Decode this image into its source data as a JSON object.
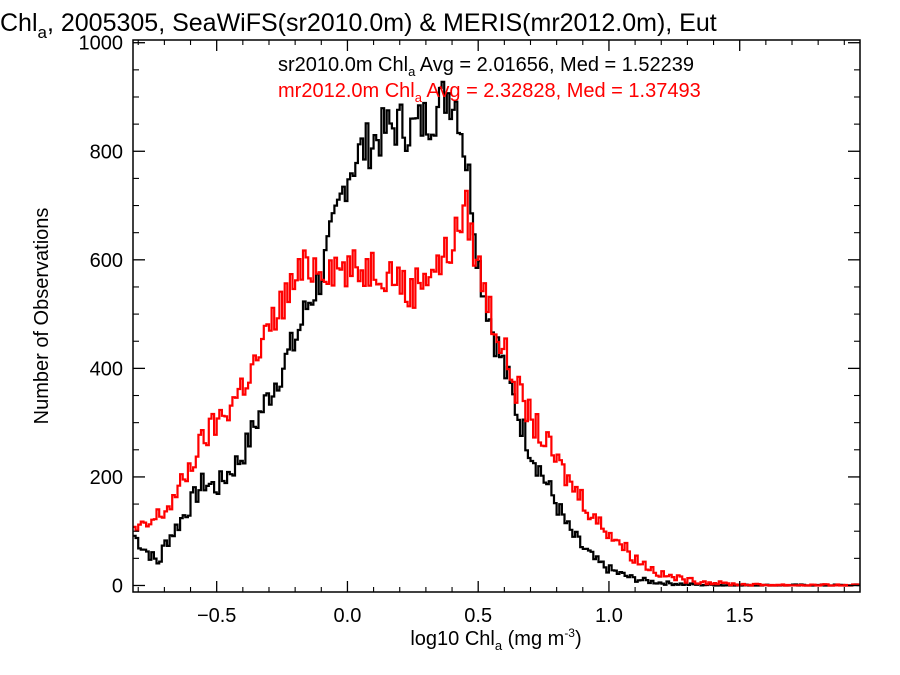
{
  "chart_data": {
    "type": "line",
    "step": true,
    "title": {
      "main": "Chl",
      "sub": "a",
      "rest": ", 2005305, SeaWiFS(sr2010.0m) & MERIS(mr2012.0m), Eut"
    },
    "xlabel": {
      "pre": "log10 Chl",
      "sub": "a",
      "mid": " (mg m",
      "sup": "-3",
      "post": ")"
    },
    "ylabel": "Number of Observations",
    "xlim": [
      -0.82,
      1.96
    ],
    "ylim": [
      -12,
      1005
    ],
    "x_ticks": [
      -0.5,
      0.0,
      0.5,
      1.0,
      1.5
    ],
    "x_tick_labels": [
      "−0.5",
      "0.0",
      "0.5",
      "1.0",
      "1.5"
    ],
    "y_ticks": [
      0,
      200,
      400,
      600,
      800,
      1000
    ],
    "y_tick_labels": [
      "0",
      "200",
      "400",
      "600",
      "800",
      "1000"
    ],
    "legend_position": "top-right",
    "series": [
      {
        "name": "sr2010.0m",
        "color": "#000000",
        "legend": {
          "pre": "sr2010.0m Chl",
          "sub": "a",
          "post": " Avg = 2.01656, Med = 1.52239"
        },
        "points": [
          [
            -0.82,
            95
          ],
          [
            -0.78,
            70
          ],
          [
            -0.75,
            55
          ],
          [
            -0.72,
            40
          ],
          [
            -0.7,
            75
          ],
          [
            -0.65,
            110
          ],
          [
            -0.6,
            150
          ],
          [
            -0.55,
            190
          ],
          [
            -0.5,
            180
          ],
          [
            -0.45,
            210
          ],
          [
            -0.4,
            240
          ],
          [
            -0.35,
            300
          ],
          [
            -0.3,
            350
          ],
          [
            -0.25,
            400
          ],
          [
            -0.2,
            450
          ],
          [
            -0.15,
            520
          ],
          [
            -0.1,
            570
          ],
          [
            -0.05,
            660
          ],
          [
            0.0,
            760
          ],
          [
            0.05,
            800
          ],
          [
            0.1,
            820
          ],
          [
            0.15,
            840
          ],
          [
            0.2,
            850
          ],
          [
            0.25,
            840
          ],
          [
            0.3,
            860
          ],
          [
            0.35,
            880
          ],
          [
            0.38,
            910
          ],
          [
            0.42,
            890
          ],
          [
            0.45,
            800
          ],
          [
            0.48,
            700
          ],
          [
            0.5,
            600
          ],
          [
            0.55,
            480
          ],
          [
            0.6,
            400
          ],
          [
            0.65,
            320
          ],
          [
            0.7,
            250
          ],
          [
            0.75,
            200
          ],
          [
            0.8,
            150
          ],
          [
            0.85,
            100
          ],
          [
            0.9,
            70
          ],
          [
            0.95,
            45
          ],
          [
            1.0,
            30
          ],
          [
            1.05,
            20
          ],
          [
            1.1,
            12
          ],
          [
            1.15,
            8
          ],
          [
            1.2,
            5
          ],
          [
            1.3,
            2
          ],
          [
            1.4,
            1
          ],
          [
            1.5,
            0
          ],
          [
            1.96,
            0
          ]
        ]
      },
      {
        "name": "mr2012.0m",
        "color": "#ff0000",
        "legend": {
          "pre": "mr2012.0m Chl",
          "sub": "a",
          "post": " Avg = 2.32828, Med = 1.37493"
        },
        "points": [
          [
            -0.82,
            100
          ],
          [
            -0.78,
            105
          ],
          [
            -0.75,
            115
          ],
          [
            -0.72,
            130
          ],
          [
            -0.7,
            135
          ],
          [
            -0.65,
            170
          ],
          [
            -0.6,
            220
          ],
          [
            -0.55,
            270
          ],
          [
            -0.5,
            300
          ],
          [
            -0.45,
            330
          ],
          [
            -0.4,
            370
          ],
          [
            -0.35,
            410
          ],
          [
            -0.3,
            470
          ],
          [
            -0.25,
            520
          ],
          [
            -0.2,
            560
          ],
          [
            -0.15,
            590
          ],
          [
            -0.1,
            590
          ],
          [
            -0.05,
            590
          ],
          [
            0.0,
            580
          ],
          [
            0.05,
            580
          ],
          [
            0.1,
            590
          ],
          [
            0.15,
            580
          ],
          [
            0.2,
            570
          ],
          [
            0.23,
            530
          ],
          [
            0.27,
            560
          ],
          [
            0.3,
            580
          ],
          [
            0.35,
            590
          ],
          [
            0.38,
            610
          ],
          [
            0.42,
            650
          ],
          [
            0.45,
            700
          ],
          [
            0.5,
            590
          ],
          [
            0.55,
            500
          ],
          [
            0.6,
            430
          ],
          [
            0.65,
            360
          ],
          [
            0.7,
            310
          ],
          [
            0.75,
            270
          ],
          [
            0.8,
            230
          ],
          [
            0.85,
            190
          ],
          [
            0.9,
            160
          ],
          [
            0.95,
            120
          ],
          [
            1.0,
            100
          ],
          [
            1.05,
            75
          ],
          [
            1.1,
            50
          ],
          [
            1.15,
            35
          ],
          [
            1.2,
            20
          ],
          [
            1.3,
            10
          ],
          [
            1.4,
            5
          ],
          [
            1.5,
            2
          ],
          [
            1.6,
            1
          ],
          [
            1.96,
            0
          ]
        ]
      }
    ]
  }
}
